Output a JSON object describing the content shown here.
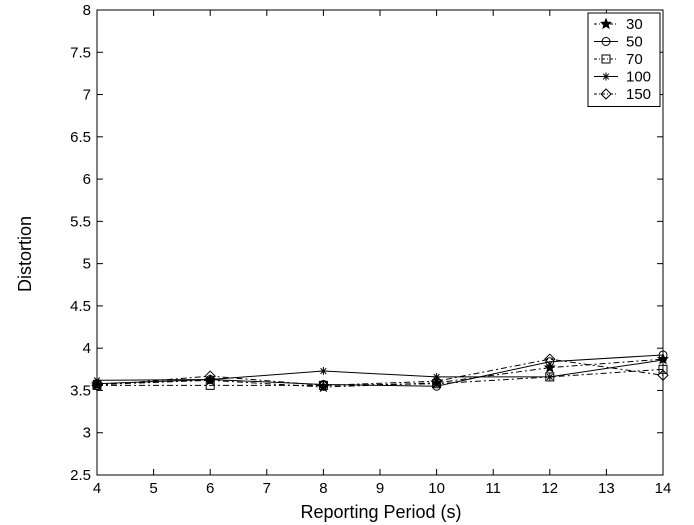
{
  "chart_data": {
    "type": "line",
    "title": "",
    "xlabel": "Reporting Period (s)",
    "ylabel": "Distortion",
    "xlim": [
      4,
      14
    ],
    "ylim": [
      2.5,
      8
    ],
    "x_ticks": [
      4,
      5,
      6,
      7,
      8,
      9,
      10,
      11,
      12,
      13,
      14
    ],
    "y_ticks": [
      2.5,
      3,
      3.5,
      4,
      4.5,
      5,
      5.5,
      6,
      6.5,
      7,
      7.5,
      8
    ],
    "x_tick_labels": [
      "4",
      "5",
      "6",
      "7",
      "8",
      "9",
      "10",
      "11",
      "12",
      "13",
      "14"
    ],
    "y_tick_labels": [
      "2.5",
      "3",
      "3.5",
      "4",
      "4.5",
      "5",
      "5.5",
      "6",
      "6.5",
      "7",
      "7.5",
      "8"
    ],
    "grid": false,
    "legend_position": "top-right",
    "x": [
      4,
      6,
      8,
      10,
      12,
      14
    ],
    "series": [
      {
        "name": "30",
        "marker": "star",
        "dash": "dashdot",
        "values": [
          3.57,
          3.62,
          3.54,
          3.59,
          3.77,
          3.87
        ]
      },
      {
        "name": "50",
        "marker": "circle",
        "dash": "solid",
        "values": [
          3.58,
          3.63,
          3.57,
          3.55,
          3.84,
          3.92
        ]
      },
      {
        "name": "70",
        "marker": "square",
        "dash": "dashdot",
        "values": [
          3.56,
          3.56,
          3.56,
          3.58,
          3.66,
          3.75
        ]
      },
      {
        "name": "100",
        "marker": "asterisk",
        "dash": "solid",
        "values": [
          3.62,
          3.63,
          3.73,
          3.66,
          3.66,
          3.86
        ]
      },
      {
        "name": "150",
        "marker": "diamond",
        "dash": "dashdot",
        "values": [
          3.56,
          3.67,
          3.56,
          3.61,
          3.87,
          3.68
        ]
      }
    ]
  }
}
